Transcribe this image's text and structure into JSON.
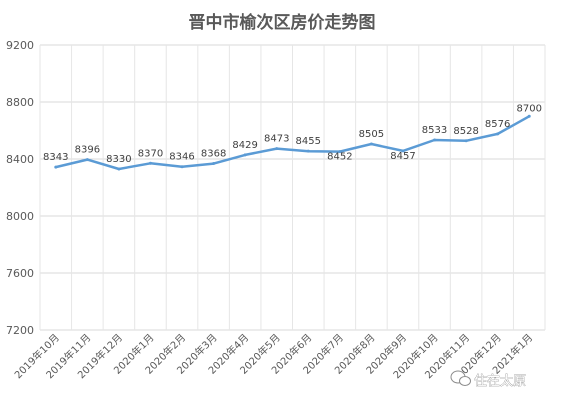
{
  "chart_data": {
    "type": "line",
    "title": "晋中市榆次区房价走势图",
    "categories": [
      "2019年10月",
      "2019年11月",
      "2019年12月",
      "2020年1月",
      "2020年2月",
      "2020年3月",
      "2020年4月",
      "2020年5月",
      "2020年6月",
      "2020年7月",
      "2020年8月",
      "2020年9月",
      "2020年10月",
      "2020年11月",
      "2020年12月",
      "2021年1月"
    ],
    "series": [
      {
        "values": [
          8343,
          8396,
          8330,
          8370,
          8346,
          8368,
          8429,
          8473,
          8455,
          8452,
          8505,
          8457,
          8533,
          8528,
          8576,
          8700
        ],
        "color": "#5b9bd5"
      }
    ],
    "yticks": [
      "9200",
      "8800",
      "8400",
      "8000",
      "7600",
      "7200"
    ],
    "ylim": [
      7200,
      9200
    ],
    "grid": true,
    "legend": "none",
    "data_labels": true
  },
  "watermark": {
    "text": "住在太原",
    "icon": "wechat-icon"
  }
}
